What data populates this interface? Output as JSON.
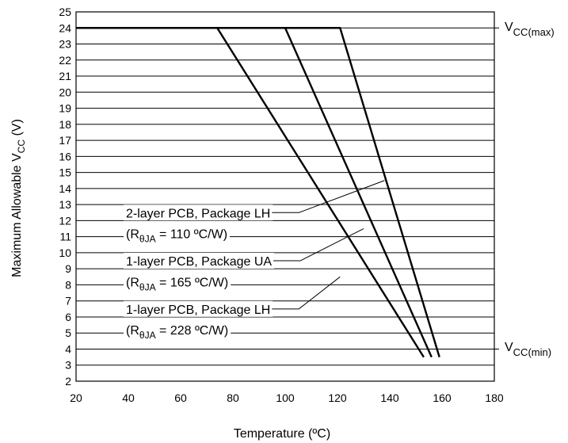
{
  "chart_data": {
    "type": "line",
    "title": "",
    "xlabel": "Temperature (ºC)",
    "ylabel": {
      "text": "Maximum Allowable V",
      "sub": "CC",
      "after": " (V)"
    },
    "xlim": [
      20,
      180
    ],
    "ylim": [
      2,
      25
    ],
    "xticks": [
      "20",
      "40",
      "60",
      "80",
      "100",
      "120",
      "140",
      "160",
      "180"
    ],
    "yticks": [
      "2",
      "3",
      "4",
      "5",
      "6",
      "7",
      "8",
      "9",
      "10",
      "11",
      "12",
      "13",
      "14",
      "15",
      "16",
      "17",
      "18",
      "19",
      "20",
      "21",
      "22",
      "23",
      "24",
      "25"
    ],
    "grid": "horizontal",
    "vcc_max_line": 24,
    "vcc_min_line": 4,
    "vcc_max_label": {
      "text": "V",
      "sub": "CC(max)"
    },
    "vcc_min_label": {
      "text": "V",
      "sub": "CC(min)"
    },
    "series": [
      {
        "name": "2-layer PCB, Package LH",
        "rtheta": "110 ºC/W",
        "x": [
          20,
          121,
          159
        ],
        "y": [
          24,
          24,
          3.5
        ]
      },
      {
        "name": "1-layer PCB, Package UA",
        "rtheta": "165 ºC/W",
        "x": [
          20,
          100,
          156
        ],
        "y": [
          24,
          24,
          3.5
        ]
      },
      {
        "name": "1-layer PCB, Package LH",
        "rtheta": "228 ºC/W",
        "x": [
          20,
          74,
          153
        ],
        "y": [
          24,
          24,
          3.5
        ]
      }
    ],
    "annotations": [
      {
        "label": "2-layer PCB, Package LH",
        "rtheta_prefix": "(R",
        "rtheta_sub": "θJA",
        "rtheta_eq": " = 110 ºC/W)",
        "label_y": 12.5,
        "rtheta_y": 11.2,
        "target_x": 138,
        "target_y": 14.5
      },
      {
        "label": "1-layer PCB, Package UA",
        "rtheta_prefix": "(R",
        "rtheta_sub": "θJA",
        "rtheta_eq": " = 165 ºC/W)",
        "label_y": 9.5,
        "rtheta_y": 8.2,
        "target_x": 130,
        "target_y": 11.5
      },
      {
        "label": "1-layer PCB, Package LH",
        "rtheta_prefix": "(R",
        "rtheta_sub": "θJA",
        "rtheta_eq": " = 228 ºC/W)",
        "label_y": 6.5,
        "rtheta_y": 5.2,
        "target_x": 121,
        "target_y": 8.5
      }
    ]
  }
}
